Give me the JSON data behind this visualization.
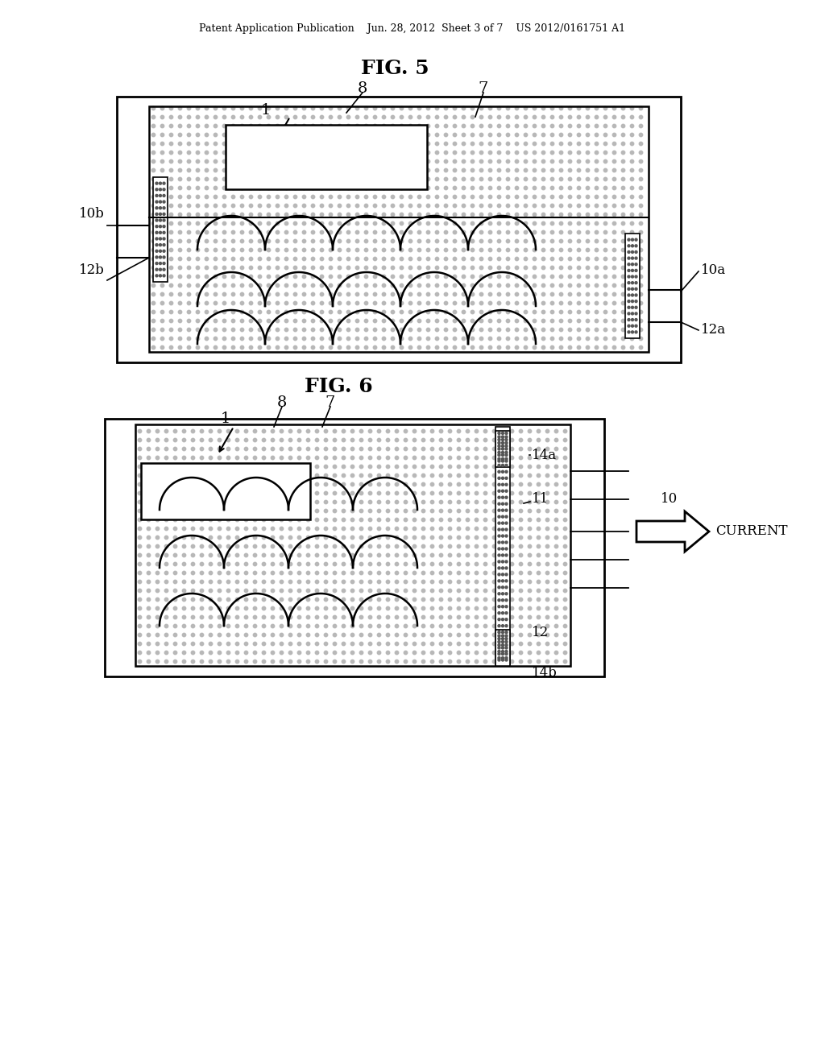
{
  "background_color": "#ffffff",
  "header_text": "Patent Application Publication    Jun. 28, 2012  Sheet 3 of 7    US 2012/0161751 A1",
  "fig5_title": "FIG. 5",
  "fig6_title": "FIG. 6",
  "dot_color": "#c8c8c8",
  "line_color": "#000000",
  "outer_box_color": "#000000",
  "inner_box_color": "#000000",
  "electrode_color": "#888888"
}
